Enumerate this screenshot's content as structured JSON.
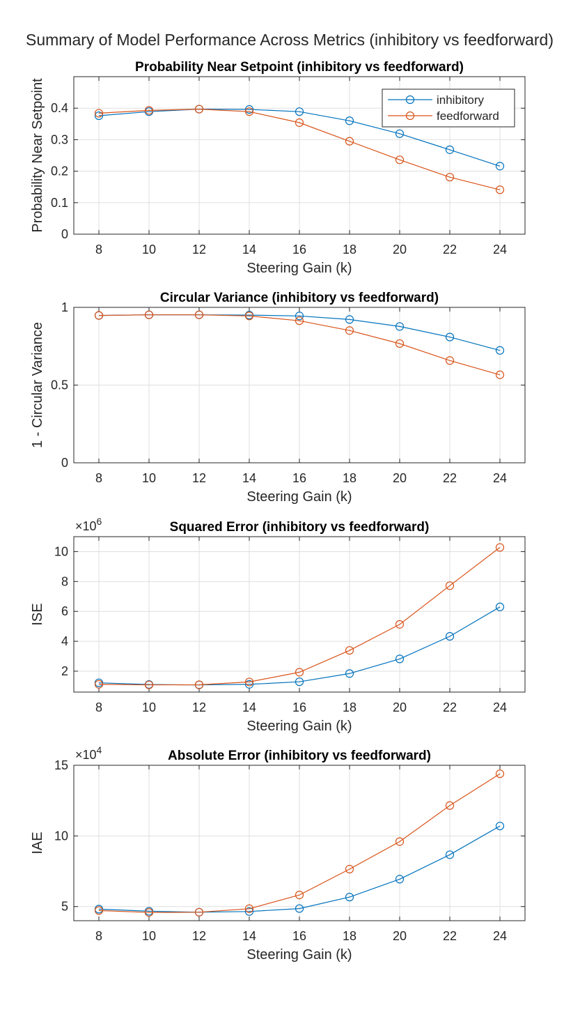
{
  "suptitle": "Summary of Model Performance Across Metrics (inhibitory vs feedforward)",
  "colors": {
    "inhibitory": "#0072BD",
    "feedforward": "#D95319",
    "axis": "#262626",
    "grid": "#dfdfdf"
  },
  "chart_data": [
    {
      "type": "line",
      "title": "Probability Near Setpoint (inhibitory vs feedforward)",
      "xlabel": "Steering Gain (k)",
      "ylabel": "Probability Near Setpoint",
      "x": [
        8,
        10,
        12,
        14,
        16,
        18,
        20,
        22,
        24
      ],
      "xlim": [
        7,
        25
      ],
      "xticks": [
        "8",
        "10",
        "12",
        "14",
        "16",
        "18",
        "20",
        "22",
        "24"
      ],
      "ylim": [
        0,
        0.5
      ],
      "yticks": [
        0,
        0.1,
        0.2,
        0.3,
        0.4
      ],
      "ytick_labels": [
        "0",
        "0.1",
        "0.2",
        "0.3",
        "0.4"
      ],
      "exponent": "",
      "grid": true,
      "legend": {
        "placement": "top-right",
        "entries": [
          "inhibitory",
          "feedforward"
        ]
      },
      "series": [
        {
          "name": "inhibitory",
          "values": [
            0.376,
            0.389,
            0.397,
            0.396,
            0.389,
            0.36,
            0.319,
            0.268,
            0.216
          ]
        },
        {
          "name": "feedforward",
          "values": [
            0.384,
            0.393,
            0.397,
            0.389,
            0.354,
            0.295,
            0.236,
            0.181,
            0.141
          ]
        }
      ]
    },
    {
      "type": "line",
      "title": "Circular Variance (inhibitory vs feedforward)",
      "xlabel": "Steering Gain (k)",
      "ylabel": "1 - Circular Variance",
      "x": [
        8,
        10,
        12,
        14,
        16,
        18,
        20,
        22,
        24
      ],
      "xlim": [
        7,
        25
      ],
      "xticks": [
        "8",
        "10",
        "12",
        "14",
        "16",
        "18",
        "20",
        "22",
        "24"
      ],
      "ylim": [
        0,
        1
      ],
      "yticks": [
        0,
        0.5,
        1
      ],
      "ytick_labels": [
        "0",
        "0.5",
        "1"
      ],
      "exponent": "",
      "grid": true,
      "series": [
        {
          "name": "inhibitory",
          "values": [
            0.948,
            0.952,
            0.952,
            0.95,
            0.945,
            0.922,
            0.877,
            0.809,
            0.723
          ]
        },
        {
          "name": "feedforward",
          "values": [
            0.948,
            0.952,
            0.952,
            0.945,
            0.914,
            0.851,
            0.767,
            0.658,
            0.566
          ]
        }
      ]
    },
    {
      "type": "line",
      "title": "Squared Error (inhibitory vs feedforward)",
      "xlabel": "Steering Gain (k)",
      "ylabel": "ISE",
      "x": [
        8,
        10,
        12,
        14,
        16,
        18,
        20,
        22,
        24
      ],
      "xlim": [
        7,
        25
      ],
      "xticks": [
        "8",
        "10",
        "12",
        "14",
        "16",
        "18",
        "20",
        "22",
        "24"
      ],
      "ylim": [
        0.6,
        11
      ],
      "yticks": [
        2,
        4,
        6,
        8,
        10
      ],
      "ytick_labels": [
        "2",
        "4",
        "6",
        "8",
        "10"
      ],
      "exponent": "×10",
      "exponent_power": "6",
      "grid": true,
      "series": [
        {
          "name": "inhibitory",
          "values": [
            1.22,
            1.11,
            1.08,
            1.12,
            1.29,
            1.84,
            2.82,
            4.33,
            6.3
          ]
        },
        {
          "name": "feedforward",
          "values": [
            1.12,
            1.08,
            1.09,
            1.28,
            1.93,
            3.39,
            5.13,
            7.72,
            10.28
          ]
        }
      ]
    },
    {
      "type": "line",
      "title": "Absolute Error (inhibitory vs feedforward)",
      "xlabel": "Steering Gain (k)",
      "ylabel": "IAE",
      "x": [
        8,
        10,
        12,
        14,
        16,
        18,
        20,
        22,
        24
      ],
      "xlim": [
        7,
        25
      ],
      "xticks": [
        "8",
        "10",
        "12",
        "14",
        "16",
        "18",
        "20",
        "22",
        "24"
      ],
      "ylim": [
        4,
        15
      ],
      "yticks": [
        5,
        10,
        15
      ],
      "ytick_labels": [
        "5",
        "10",
        "15"
      ],
      "exponent": "×10",
      "exponent_power": "4",
      "grid": true,
      "series": [
        {
          "name": "inhibitory",
          "values": [
            4.82,
            4.67,
            4.6,
            4.65,
            4.86,
            5.67,
            6.94,
            8.67,
            10.7
          ]
        },
        {
          "name": "feedforward",
          "values": [
            4.72,
            4.58,
            4.6,
            4.85,
            5.82,
            7.65,
            9.6,
            12.15,
            14.4
          ]
        }
      ]
    }
  ]
}
